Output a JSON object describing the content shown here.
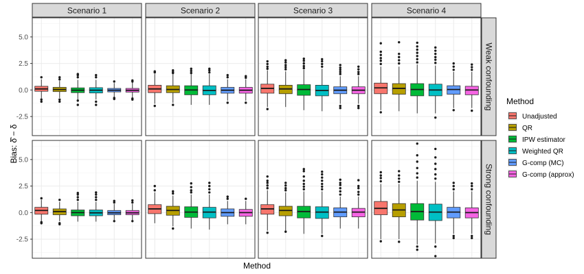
{
  "chart_data": {
    "type": "boxplot",
    "xlabel": "Method",
    "ylabel": "Bias: δ̂ − δ",
    "ylim": [
      -4.3,
      6.8
    ],
    "yticks": [
      -2.5,
      0.0,
      2.5,
      5.0
    ],
    "ytick_labels": [
      "-2.5",
      "0.0",
      "2.5",
      "5.0"
    ],
    "grid": true,
    "columns": [
      "Scenario 1",
      "Scenario 2",
      "Scenario 3",
      "Scenario 4"
    ],
    "rows": [
      "Weak confounding",
      "Strong confounding"
    ],
    "legend": {
      "title": "Method",
      "position": "right",
      "items": [
        {
          "label": "Unadjusted",
          "color": "#F8766D"
        },
        {
          "label": "QR",
          "color": "#B79F00"
        },
        {
          "label": "IPW estimator",
          "color": "#00BA38"
        },
        {
          "label": "Weighted QR",
          "color": "#00BFC4"
        },
        {
          "label": "G-comp (MC)",
          "color": "#619CFF"
        },
        {
          "label": "G-comp (approx)",
          "color": "#F564E3"
        }
      ]
    },
    "panels": [
      {
        "row": "Weak confounding",
        "column": "Scenario 1",
        "methods": [
          {
            "q1": -0.12,
            "median": 0.1,
            "q3": 0.35,
            "wlo": -0.8,
            "whi": 1.0,
            "out": [
              1.2,
              -0.9,
              -1.1
            ]
          },
          {
            "q1": -0.15,
            "median": 0.05,
            "q3": 0.25,
            "wlo": -0.75,
            "whi": 0.85,
            "out": [
              1.0,
              1.2,
              -0.9,
              -1.1
            ]
          },
          {
            "q1": -0.25,
            "median": -0.02,
            "q3": 0.2,
            "wlo": -0.9,
            "whi": 0.95,
            "out": [
              1.2,
              1.4,
              1.5,
              -1.0,
              -1.4
            ]
          },
          {
            "q1": -0.28,
            "median": -0.02,
            "q3": 0.22,
            "wlo": -0.9,
            "whi": 0.95,
            "out": [
              1.2,
              1.4,
              -1.1,
              -1.4
            ]
          },
          {
            "q1": -0.18,
            "median": -0.02,
            "q3": 0.15,
            "wlo": -0.65,
            "whi": 0.65,
            "out": [
              0.8,
              -0.75,
              -0.85
            ]
          },
          {
            "q1": -0.2,
            "median": -0.03,
            "q3": 0.15,
            "wlo": -0.7,
            "whi": 0.7,
            "out": [
              0.8,
              0.9,
              -0.8,
              -0.9
            ]
          }
        ]
      },
      {
        "row": "Weak confounding",
        "column": "Scenario 2",
        "methods": [
          {
            "q1": -0.25,
            "median": 0.1,
            "q3": 0.45,
            "wlo": -1.3,
            "whi": 1.5,
            "out": [
              1.65,
              1.75,
              -1.5
            ]
          },
          {
            "q1": -0.25,
            "median": 0.05,
            "q3": 0.4,
            "wlo": -1.2,
            "whi": 1.5,
            "out": [
              1.6,
              1.7,
              1.85,
              -1.4
            ]
          },
          {
            "q1": -0.45,
            "median": 0.0,
            "q3": 0.4,
            "wlo": -1.4,
            "whi": 1.5,
            "out": [
              1.6,
              1.8,
              2.0
            ]
          },
          {
            "q1": -0.45,
            "median": -0.05,
            "q3": 0.4,
            "wlo": -1.4,
            "whi": 1.5,
            "out": [
              1.65,
              1.85,
              2.0
            ]
          },
          {
            "q1": -0.3,
            "median": -0.02,
            "q3": 0.25,
            "wlo": -1.0,
            "whi": 1.0,
            "out": [
              1.2,
              1.4,
              -1.2
            ]
          },
          {
            "q1": -0.3,
            "median": -0.02,
            "q3": 0.25,
            "wlo": -1.0,
            "whi": 1.0,
            "out": [
              1.15,
              1.3,
              -1.2
            ]
          }
        ]
      },
      {
        "row": "Weak confounding",
        "column": "Scenario 3",
        "methods": [
          {
            "q1": -0.3,
            "median": 0.15,
            "q3": 0.55,
            "wlo": -1.6,
            "whi": 1.85,
            "out": [
              2.0,
              2.2,
              2.45,
              2.7,
              -1.8
            ]
          },
          {
            "q1": -0.35,
            "median": 0.1,
            "q3": 0.45,
            "wlo": -1.6,
            "whi": 1.75,
            "out": [
              1.95,
              2.15,
              2.35,
              2.6,
              2.8
            ]
          },
          {
            "q1": -0.5,
            "median": 0.05,
            "q3": 0.5,
            "wlo": -1.9,
            "whi": 1.9,
            "out": [
              2.05,
              2.25,
              2.5,
              2.75,
              2.95
            ]
          },
          {
            "q1": -0.55,
            "median": -0.05,
            "q3": 0.45,
            "wlo": -2.0,
            "whi": 2.0,
            "out": [
              2.2,
              2.45,
              2.7,
              2.9
            ]
          },
          {
            "q1": -0.35,
            "median": -0.02,
            "q3": 0.3,
            "wlo": -1.3,
            "whi": 1.3,
            "out": [
              1.5,
              1.7,
              1.9,
              2.1,
              2.35,
              -1.5,
              -1.7
            ]
          },
          {
            "q1": -0.35,
            "median": -0.02,
            "q3": 0.3,
            "wlo": -1.3,
            "whi": 1.3,
            "out": [
              1.5,
              1.7,
              1.95,
              2.2,
              -1.5,
              -1.7
            ]
          }
        ]
      },
      {
        "row": "Weak confounding",
        "column": "Scenario 4",
        "methods": [
          {
            "q1": -0.35,
            "median": 0.2,
            "q3": 0.65,
            "wlo": -1.9,
            "whi": 2.2,
            "out": [
              2.45,
              2.75,
              3.0,
              3.3,
              3.6,
              4.4,
              -2.1
            ]
          },
          {
            "q1": -0.4,
            "median": 0.15,
            "q3": 0.6,
            "wlo": -2.0,
            "whi": 2.2,
            "out": [
              2.5,
              2.8,
              3.1,
              3.4,
              4.5
            ]
          },
          {
            "q1": -0.55,
            "median": 0.05,
            "q3": 0.6,
            "wlo": -2.2,
            "whi": 2.4,
            "out": [
              2.6,
              2.9,
              3.2,
              3.5,
              3.8,
              4.1,
              4.45
            ]
          },
          {
            "q1": -0.55,
            "median": 0.0,
            "q3": 0.55,
            "wlo": -2.2,
            "whi": 2.3,
            "out": [
              2.55,
              2.85,
              3.1,
              3.4,
              3.7,
              4.0,
              -2.6
            ]
          },
          {
            "q1": -0.4,
            "median": 0.05,
            "q3": 0.4,
            "wlo": -1.7,
            "whi": 1.7,
            "out": [
              1.9,
              2.2,
              2.5,
              -1.9
            ]
          },
          {
            "q1": -0.45,
            "median": 0.0,
            "q3": 0.35,
            "wlo": -1.7,
            "whi": 1.7,
            "out": [
              1.9,
              2.15,
              2.4,
              -1.95
            ]
          }
        ]
      },
      {
        "row": "Strong confounding",
        "column": "Scenario 1",
        "methods": [
          {
            "q1": -0.15,
            "median": 0.2,
            "q3": 0.5,
            "wlo": -0.8,
            "whi": 1.2,
            "out": [
              1.35,
              -0.9,
              -1.0
            ]
          },
          {
            "q1": -0.2,
            "median": 0.1,
            "q3": 0.35,
            "wlo": -0.8,
            "whi": 1.0,
            "out": [
              1.2,
              -1.0,
              -1.1
            ]
          },
          {
            "q1": -0.3,
            "median": 0.0,
            "q3": 0.25,
            "wlo": -0.85,
            "whi": 1.0,
            "out": [
              1.2,
              1.45,
              1.7,
              1.85
            ]
          },
          {
            "q1": -0.3,
            "median": -0.02,
            "q3": 0.25,
            "wlo": -0.85,
            "whi": 1.0,
            "out": [
              1.2,
              1.45,
              1.7,
              1.9
            ]
          },
          {
            "q1": -0.2,
            "median": -0.02,
            "q3": 0.2,
            "wlo": -0.7,
            "whi": 0.8,
            "out": [
              0.95,
              1.1,
              -0.8
            ]
          },
          {
            "q1": -0.2,
            "median": -0.02,
            "q3": 0.2,
            "wlo": -0.7,
            "whi": 0.8,
            "out": [
              0.95,
              1.15,
              -0.8
            ]
          }
        ]
      },
      {
        "row": "Strong confounding",
        "column": "Scenario 2",
        "methods": [
          {
            "q1": -0.1,
            "median": 0.35,
            "q3": 0.75,
            "wlo": -1.0,
            "whi": 1.9,
            "out": [
              2.1,
              2.5
            ]
          },
          {
            "q1": -0.25,
            "median": 0.2,
            "q3": 0.6,
            "wlo": -1.3,
            "whi": 1.6,
            "out": [
              1.8,
              2.0,
              -1.5
            ]
          },
          {
            "q1": -0.45,
            "median": 0.05,
            "q3": 0.55,
            "wlo": -1.5,
            "whi": 1.7,
            "out": [
              1.9,
              2.1,
              2.4,
              2.75
            ]
          },
          {
            "q1": -0.5,
            "median": 0.05,
            "q3": 0.5,
            "wlo": -1.6,
            "whi": 1.7,
            "out": [
              1.9,
              2.2,
              2.5,
              2.8
            ]
          },
          {
            "q1": -0.35,
            "median": 0.0,
            "q3": 0.35,
            "wlo": -1.1,
            "whi": 1.1,
            "out": [
              1.3,
              1.5
            ]
          },
          {
            "q1": -0.35,
            "median": 0.0,
            "q3": 0.3,
            "wlo": -1.1,
            "whi": 1.1,
            "out": [
              1.3
            ]
          }
        ]
      },
      {
        "row": "Strong confounding",
        "column": "Scenario 3",
        "methods": [
          {
            "q1": -0.15,
            "median": 0.35,
            "q3": 0.75,
            "wlo": -1.7,
            "whi": 2.1,
            "out": [
              2.3,
              2.55,
              2.8,
              3.0,
              3.4,
              -1.9
            ]
          },
          {
            "q1": -0.3,
            "median": 0.2,
            "q3": 0.6,
            "wlo": -1.7,
            "whi": 1.9,
            "out": [
              2.1,
              2.3,
              2.55,
              2.8,
              -1.8
            ]
          },
          {
            "q1": -0.5,
            "median": 0.1,
            "q3": 0.6,
            "wlo": -2.0,
            "whi": 2.0,
            "out": [
              2.2,
              2.45,
              2.7,
              3.0,
              3.4,
              3.9,
              4.1
            ]
          },
          {
            "q1": -0.55,
            "median": 0.05,
            "q3": 0.55,
            "wlo": -2.0,
            "whi": 2.0,
            "out": [
              2.2,
              2.45,
              2.7,
              3.0,
              3.3,
              3.6,
              3.85,
              -2.2
            ]
          },
          {
            "q1": -0.4,
            "median": 0.05,
            "q3": 0.45,
            "wlo": -1.5,
            "whi": 1.5,
            "out": [
              1.7,
              2.0,
              2.3,
              2.6,
              2.8,
              3.1
            ]
          },
          {
            "q1": -0.4,
            "median": 0.05,
            "q3": 0.4,
            "wlo": -1.5,
            "whi": 1.5,
            "out": [
              1.7,
              1.95,
              2.3,
              2.5,
              3.05
            ]
          }
        ]
      },
      {
        "row": "Strong confounding",
        "column": "Scenario 4",
        "methods": [
          {
            "q1": -0.2,
            "median": 0.4,
            "q3": 1.05,
            "wlo": -2.5,
            "whi": 2.7,
            "out": [
              2.95,
              3.25,
              3.5,
              3.8,
              -2.7
            ]
          },
          {
            "q1": -0.4,
            "median": 0.25,
            "q3": 0.85,
            "wlo": -2.5,
            "whi": 2.7,
            "out": [
              2.9,
              3.2,
              3.5,
              3.9,
              -2.75
            ]
          },
          {
            "q1": -0.7,
            "median": 0.1,
            "q3": 0.85,
            "wlo": -3.0,
            "whi": 3.0,
            "out": [
              3.3,
              3.7,
              4.2,
              4.8,
              5.4,
              6.5,
              -3.2,
              -3.5
            ]
          },
          {
            "q1": -0.75,
            "median": 0.05,
            "q3": 0.8,
            "wlo": -2.9,
            "whi": 2.9,
            "out": [
              3.2,
              3.6,
              4.1,
              4.6,
              5.2,
              6.0,
              -3.2,
              -4.1
            ]
          },
          {
            "q1": -0.5,
            "median": 0.05,
            "q3": 0.5,
            "wlo": -2.0,
            "whi": 2.0,
            "out": [
              2.2,
              2.5,
              2.8,
              -2.2,
              -2.4
            ]
          },
          {
            "q1": -0.5,
            "median": 0.0,
            "q3": 0.45,
            "wlo": -2.0,
            "whi": 2.0,
            "out": [
              2.2,
              2.5,
              2.75,
              -2.2,
              -2.4
            ]
          }
        ]
      }
    ]
  }
}
